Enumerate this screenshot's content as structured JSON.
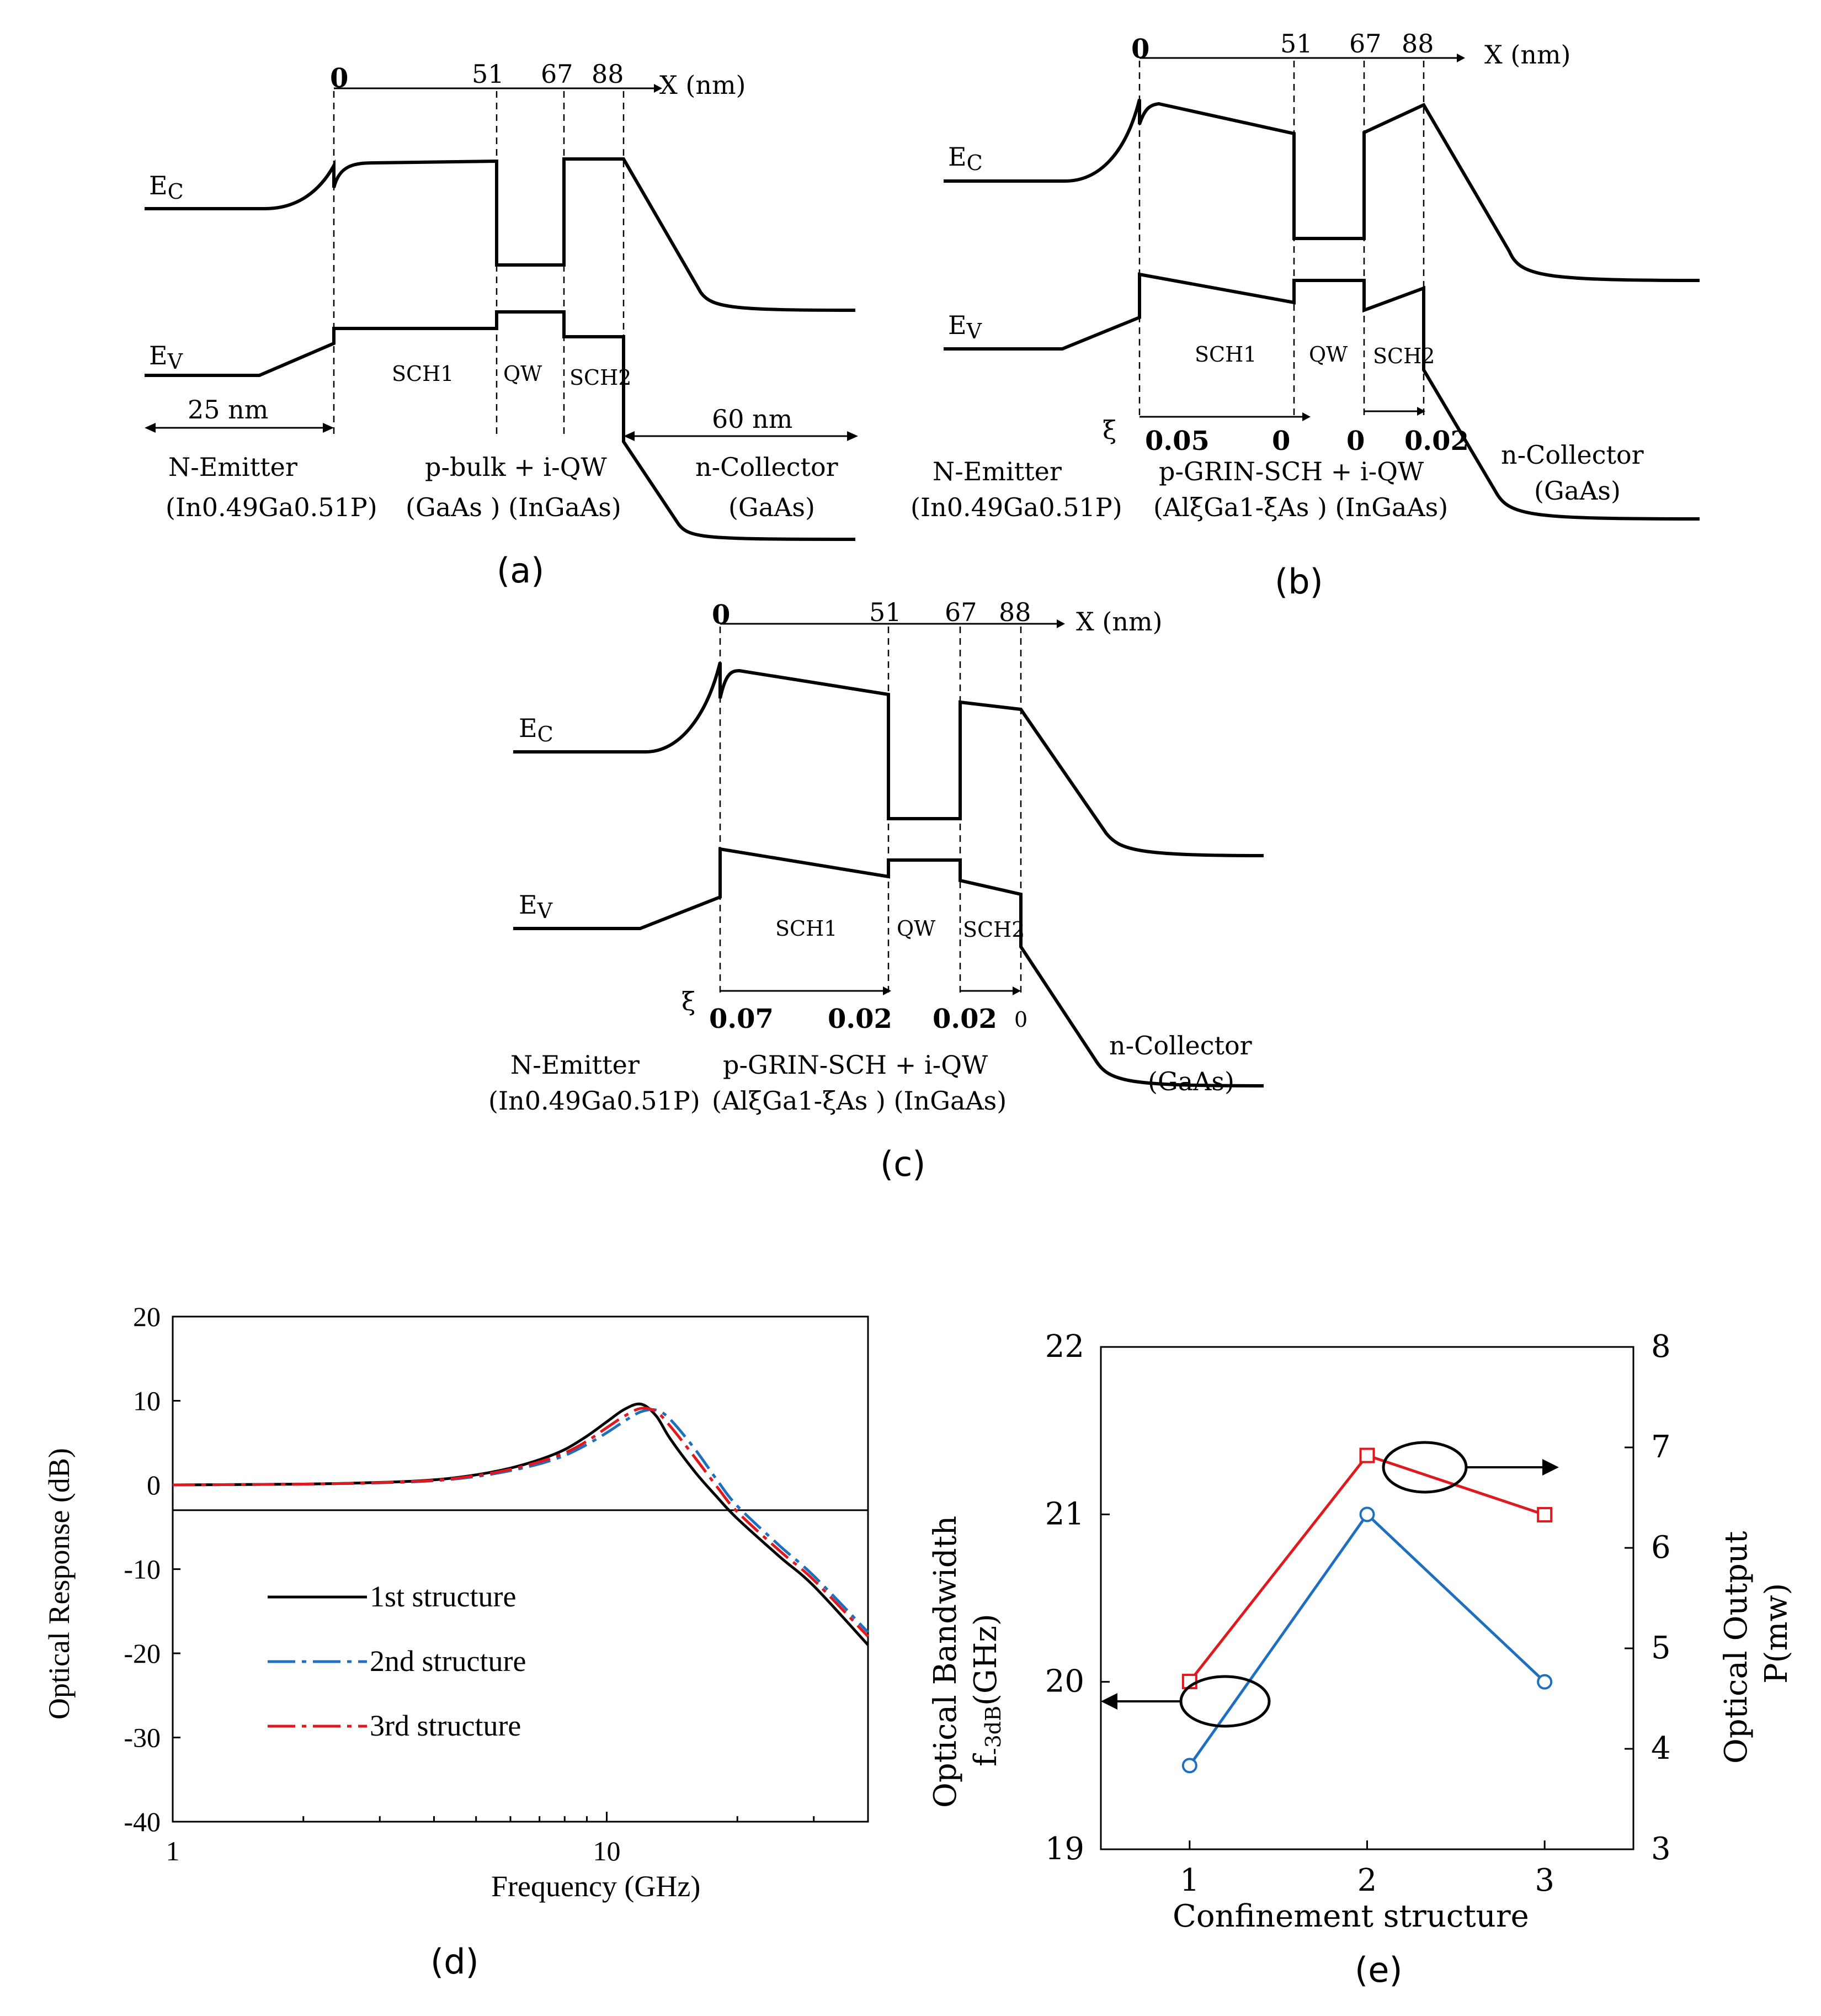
{
  "diagram_a": {
    "caption": "(a)",
    "axis_label": "X (nm)",
    "positions": [
      "0",
      "51",
      "67",
      "88"
    ],
    "ec": "E",
    "ec_sub": "C",
    "ev": "E",
    "ev_sub": "V",
    "regions": [
      "SCH1",
      "QW",
      "SCH2"
    ],
    "dim_left": "25 nm",
    "dim_right": "60 nm",
    "emitter": "N-Emitter",
    "emitter_mat": "(In0.49Ga0.51P)",
    "middle_line1": "p-bulk +  i-QW",
    "middle_line2": "(GaAs )  (InGaAs)",
    "collector": "n-Collector",
    "collector_mat": "(GaAs)"
  },
  "diagram_b": {
    "caption": "(b)",
    "axis_label": "X (nm)",
    "positions": [
      "0",
      "51",
      "67",
      "88"
    ],
    "ec": "E",
    "ec_sub": "C",
    "ev": "E",
    "ev_sub": "V",
    "regions": [
      "SCH1",
      "QW",
      "SCH2"
    ],
    "xi": "ξ",
    "xi_values": [
      "0.05",
      "0",
      "0",
      "0.02"
    ],
    "emitter": "N-Emitter",
    "emitter_mat": "(In0.49Ga0.51P)",
    "middle_line1": "p-GRIN-SCH + i-QW",
    "middle_line2": "(AlξGa1-ξAs )   (InGaAs)",
    "collector": "n-Collector",
    "collector_mat": "(GaAs)"
  },
  "diagram_c": {
    "caption": "(c)",
    "axis_label": "X (nm)",
    "positions": [
      "0",
      "51",
      "67",
      "88"
    ],
    "ec": "E",
    "ec_sub": "C",
    "ev": "E",
    "ev_sub": "V",
    "regions": [
      "SCH1",
      "QW",
      "SCH2"
    ],
    "xi": "ξ",
    "xi_values": [
      "0.07",
      "0.02",
      "0.02",
      "0"
    ],
    "emitter": "N-Emitter",
    "emitter_mat": "(In0.49Ga0.51P)",
    "middle_line1": "p-GRIN-SCH  + i-QW",
    "middle_line2": "(AlξGa1-ξAs )  (InGaAs)",
    "collector": "n-Collector",
    "collector_mat": "(GaAs)"
  },
  "colors": {
    "blue": "#1f6fc0",
    "red": "#e0191e",
    "black": "#000000"
  },
  "chart_data": [
    {
      "id": "d",
      "caption": "(d)",
      "type": "line",
      "xscale": "log",
      "xlabel": "Frequency (GHz)",
      "ylabel": "Optical Response (dB)",
      "xlim": [
        1,
        40
      ],
      "ylim": [
        -40,
        20
      ],
      "xticks": [
        "1",
        "10"
      ],
      "yticks": [
        "20",
        "10",
        "0",
        "-10",
        "-20",
        "-30",
        "-40"
      ],
      "ytick_values": [
        20,
        10,
        0,
        -10,
        -20,
        -30,
        -40
      ],
      "reference_line": -3,
      "series": [
        {
          "name": "1st structure",
          "style": "solid",
          "color": "#000000",
          "x": [
            1,
            2,
            3,
            4,
            5,
            6,
            7,
            8,
            9,
            10,
            11,
            12,
            13,
            14,
            16,
            18,
            20,
            25,
            30,
            40
          ],
          "y": [
            0,
            0.1,
            0.3,
            0.6,
            1.2,
            2.0,
            3.0,
            4.2,
            5.8,
            7.5,
            9.0,
            9.6,
            8.2,
            5.5,
            1.5,
            -1.5,
            -4.0,
            -8.5,
            -12.0,
            -19.0
          ]
        },
        {
          "name": "2nd structure",
          "style": "dashdot",
          "color": "#1f6fc0",
          "x": [
            1,
            2,
            3,
            4,
            5,
            6,
            7,
            8,
            9,
            10,
            11,
            12,
            13,
            14,
            16,
            18,
            20,
            25,
            30,
            40
          ],
          "y": [
            0,
            0.1,
            0.25,
            0.5,
            1.0,
            1.7,
            2.5,
            3.5,
            4.8,
            6.2,
            7.6,
            8.7,
            8.9,
            7.8,
            4.2,
            0.5,
            -2.5,
            -7.2,
            -10.8,
            -17.5
          ]
        },
        {
          "name": "3rd structure",
          "style": "dashdot",
          "color": "#e0191e",
          "x": [
            1,
            2,
            3,
            4,
            5,
            6,
            7,
            8,
            9,
            10,
            11,
            12,
            13,
            14,
            16,
            18,
            20,
            25,
            30,
            40
          ],
          "y": [
            0,
            0.1,
            0.28,
            0.55,
            1.1,
            1.85,
            2.75,
            3.8,
            5.2,
            6.8,
            8.2,
            9.1,
            8.7,
            7.0,
            3.2,
            -0.3,
            -3.2,
            -7.8,
            -11.3,
            -18.0
          ]
        }
      ]
    },
    {
      "id": "e",
      "caption": "(e)",
      "type": "line",
      "xlabel": "Confinement structure",
      "ylabel_left_line1": "Optical Bandwidth",
      "ylabel_left_line2": "f-3dB(GHz)",
      "ylabel_left_sub": "-3dB",
      "ylabel_left_main": "f",
      "ylabel_left_unit": "(GHz)",
      "ylabel_right_line1": "Optical Output",
      "ylabel_right_line2": "P(mw)",
      "categories": [
        "1",
        "2",
        "3"
      ],
      "x": [
        1,
        2,
        3
      ],
      "xlim": [
        0.5,
        3.5
      ],
      "ylim_left": [
        19,
        22
      ],
      "ylim_right": [
        3,
        8
      ],
      "yticks_left": [
        "22",
        "21",
        "20",
        "19"
      ],
      "yticks_left_values": [
        22,
        21,
        20,
        19
      ],
      "yticks_right": [
        "8",
        "7",
        "6",
        "5",
        "4",
        "3"
      ],
      "yticks_right_values": [
        8,
        7,
        6,
        5,
        4,
        3
      ],
      "series": [
        {
          "name": "Optical Bandwidth",
          "axis": "left",
          "marker": "circle",
          "color": "#1f6fc0",
          "values": [
            19.5,
            21.0,
            20.0
          ]
        },
        {
          "name": "Optical Output",
          "axis": "right",
          "marker": "square",
          "color": "#e0191e",
          "values": [
            4.67,
            6.92,
            6.33
          ]
        }
      ]
    }
  ]
}
